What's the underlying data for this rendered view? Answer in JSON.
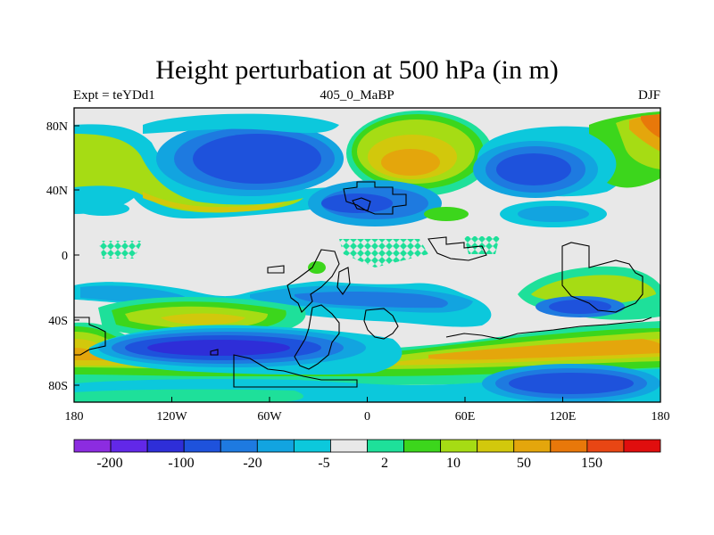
{
  "title": "Height perturbation at 500 hPa (in m)",
  "subtitle_left": "Expt = teYDd1",
  "subtitle_center": "405_0_MaBP",
  "subtitle_right": "DJF",
  "x_ticks": [
    "180",
    "120W",
    "60W",
    "0",
    "60E",
    "120E",
    "180"
  ],
  "y_ticks": [
    "80N",
    "40N",
    "0",
    "40S",
    "80S"
  ],
  "colorbar": {
    "colors": [
      "#8c2ce0",
      "#6228e8",
      "#2e2ed8",
      "#1e52dc",
      "#1e7ae0",
      "#12a4e0",
      "#0cc8dc",
      "#e8e8e8",
      "#1ee09a",
      "#3cd61c",
      "#a6dc14",
      "#d2c80c",
      "#e4a60c",
      "#e8780a",
      "#e84614",
      "#e00e0e"
    ],
    "labels": [
      "-200",
      "-100",
      "-20",
      "-5",
      "2",
      "10",
      "50",
      "150"
    ]
  },
  "colors": {
    "land_outline": "#000000",
    "frame": "#000000"
  }
}
